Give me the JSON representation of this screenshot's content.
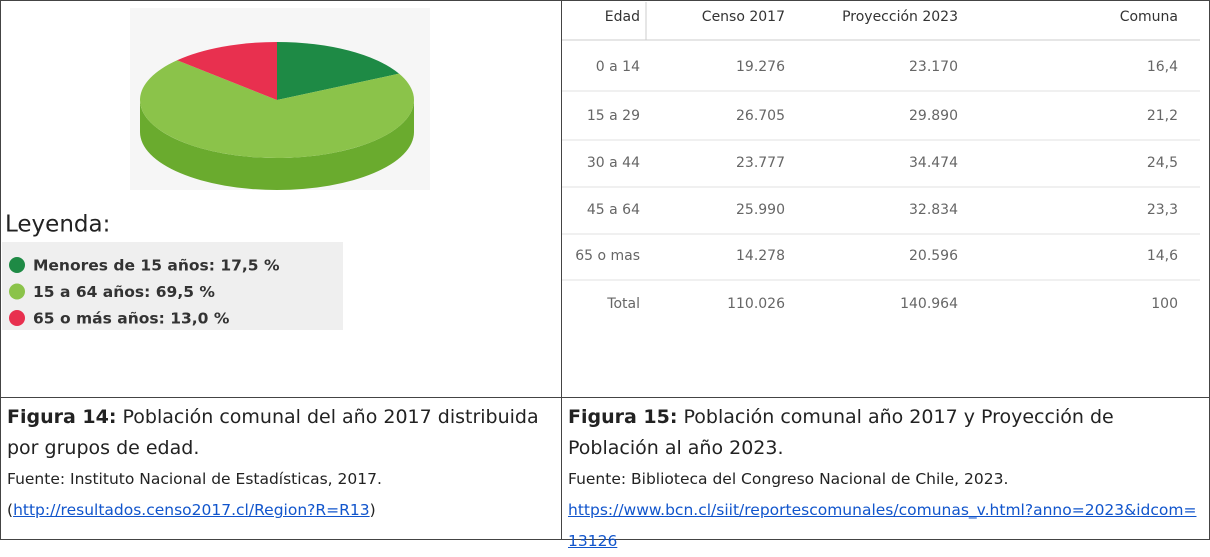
{
  "chart_data": {
    "type": "pie",
    "categories": [
      "Menores de 15 años: 17,5 %",
      "15 a 64 años: 69,5 %",
      "65 o más años: 13,0 %"
    ],
    "values": [
      17.5,
      69.5,
      13.0
    ],
    "colors": [
      "#1e8a45",
      "#8bc34a",
      "#e8304f"
    ],
    "legend_title": "Leyenda:"
  },
  "table": {
    "header": [
      "Edad",
      "Censo 2017",
      "Proyección 2023",
      "Comuna"
    ],
    "rows": [
      [
        "0 a 14",
        "19.276",
        "23.170",
        "16,4"
      ],
      [
        "15 a 29",
        "26.705",
        "29.890",
        "21,2"
      ],
      [
        "30 a 44",
        "23.777",
        "34.474",
        "24,5"
      ],
      [
        "45 a 64",
        "25.990",
        "32.834",
        "23,3"
      ],
      [
        "65 o mas",
        "14.278",
        "20.596",
        "14,6"
      ],
      [
        "Total",
        "110.026",
        "140.964",
        "100"
      ]
    ]
  },
  "captions": [
    {
      "label": "Figura 14:",
      "text": "Población comunal del año 2017 distribuida por grupos de edad.",
      "source": "Fuente: Instituto Nacional de Estadísticas, 2017.",
      "link_before": "(",
      "link": "http://resultados.censo2017.cl/Region?R=R13",
      "link_after": ")"
    },
    {
      "label": "Figura 15:",
      "text": "Población comunal año 2017 y Proyección de Población al año 2023.",
      "source": "Fuente: Biblioteca del Congreso Nacional de Chile, 2023.",
      "link_before": "",
      "link": "https://www.bcn.cl/siit/reportescomunales/comunas_v.html?anno=2023&idcom=13126",
      "link_after": ""
    }
  ]
}
